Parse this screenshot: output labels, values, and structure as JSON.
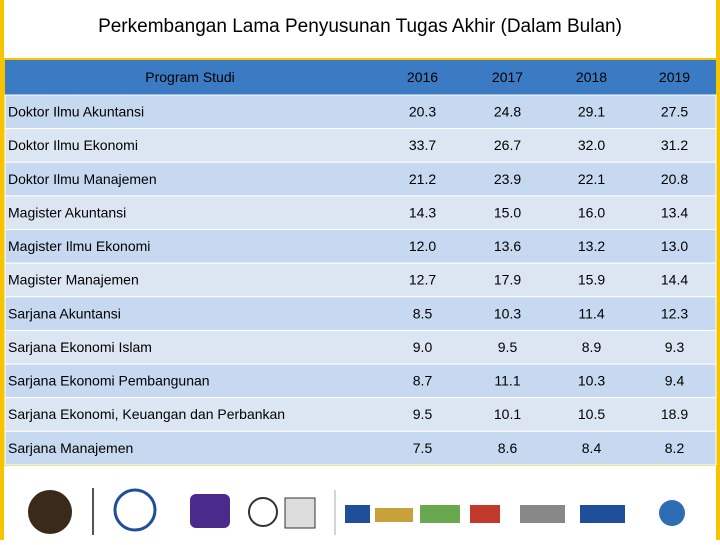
{
  "header": {
    "title": "Perkembangan Lama Penyusunan Tugas Akhir (Dalam Bulan)"
  },
  "table": {
    "columns": [
      "Program Studi",
      "2016",
      "2017",
      "2018",
      "2019"
    ],
    "rows": [
      [
        "Doktor Ilmu Akuntansi",
        "20.3",
        "24.8",
        "29.1",
        "27.5"
      ],
      [
        "Doktor Ilmu Ekonomi",
        "33.7",
        "26.7",
        "32.0",
        "31.2"
      ],
      [
        "Doktor Ilmu Manajemen",
        "21.2",
        "23.9",
        "22.1",
        "20.8"
      ],
      [
        "Magister Akuntansi",
        "14.3",
        "15.0",
        "16.0",
        "13.4"
      ],
      [
        "Magister Ilmu Ekonomi",
        "12.0",
        "13.6",
        "13.2",
        "13.0"
      ],
      [
        "Magister Manajemen",
        "12.7",
        "17.9",
        "15.9",
        "14.4"
      ],
      [
        "Sarjana Akuntansi",
        "8.5",
        "10.3",
        "11.4",
        "12.3"
      ],
      [
        "Sarjana Ekonomi Islam",
        "9.0",
        "9.5",
        "8.9",
        "9.3"
      ],
      [
        "Sarjana Ekonomi Pembangunan",
        "8.7",
        "11.1",
        "10.3",
        "9.4"
      ],
      [
        "Sarjana Ekonomi, Keuangan dan Perbankan",
        "9.5",
        "10.1",
        "10.5",
        "18.9"
      ],
      [
        "Sarjana Manajemen",
        "7.5",
        "8.6",
        "8.4",
        "8.2"
      ]
    ]
  }
}
